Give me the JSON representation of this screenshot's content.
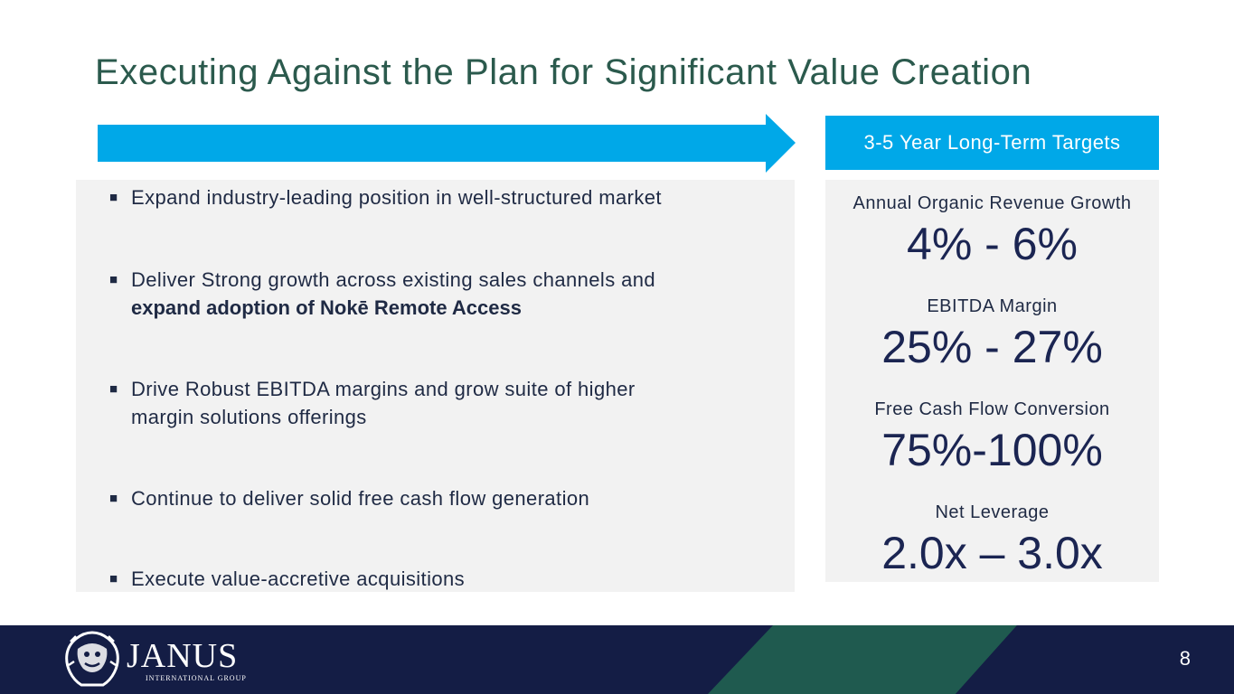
{
  "slide": {
    "title": "Executing Against the Plan for Significant Value Creation",
    "page_number": "8"
  },
  "initiatives": {
    "marker": "■",
    "items": [
      {
        "text": "Expand industry-leading position in well-structured market"
      },
      {
        "text": "Deliver Strong growth across existing sales channels and",
        "bold_text": "expand adoption of Nokē Remote Access"
      },
      {
        "text": "Drive Robust EBITDA margins and grow suite of higher",
        "text_line2": "margin solutions offerings"
      },
      {
        "text": "Continue to deliver solid free cash flow generation"
      },
      {
        "text": "Execute value-accretive acquisitions"
      }
    ]
  },
  "targets": {
    "header": "3-5 Year Long-Term Targets",
    "metrics": [
      {
        "label": "Annual Organic Revenue Growth",
        "value": "4% - 6%"
      },
      {
        "label": "EBITDA Margin",
        "value": "25% - 27%"
      },
      {
        "label": "Free Cash Flow Conversion",
        "value": "75%-100%"
      },
      {
        "label": "Net Leverage",
        "value": "2.0x – 3.0x"
      }
    ]
  },
  "footer": {
    "logo_name": "JANUS",
    "logo_subtitle": "INTERNATIONAL GROUP",
    "logo_icon": "lion-crest-icon"
  },
  "colors": {
    "title": "#2b5a4d",
    "accent_blue": "#00a8e8",
    "navy": "#141d45",
    "value_navy": "#1b2552",
    "panel_gray": "#f2f2f2",
    "footer_green": "#1f5a4f"
  }
}
